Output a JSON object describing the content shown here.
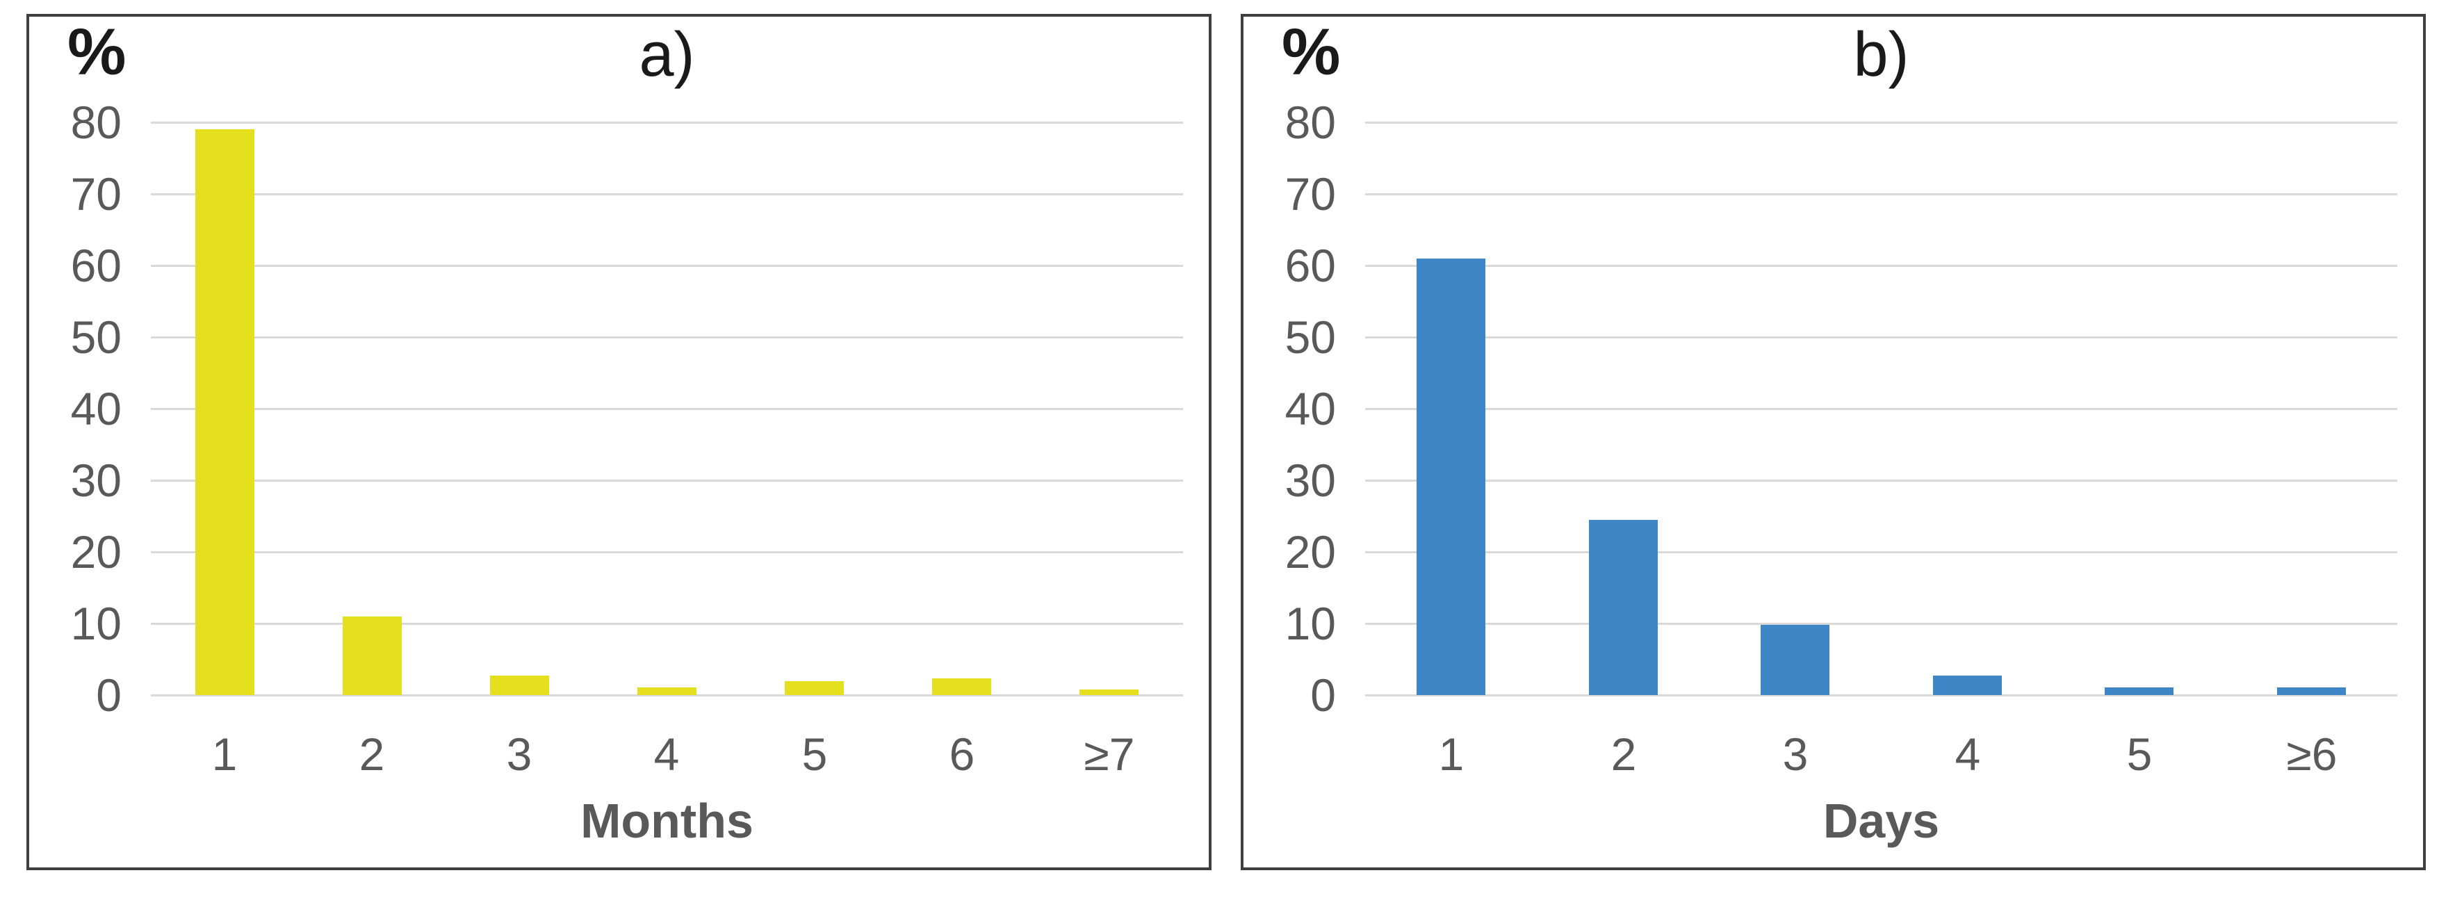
{
  "colors": {
    "frame": "#3f3f3f",
    "gridline": "#d9d9d9",
    "tick_text": "#595959",
    "axis_label_text": "#595959",
    "title_text": "#1a1a1a",
    "background": "#ffffff",
    "bar_yellow": "#e4e01e",
    "bar_blue": "#3d87c6"
  },
  "chart_data": [
    {
      "type": "bar",
      "title": "a)",
      "ylabel": "%",
      "xlabel": "Months",
      "categories": [
        "1",
        "2",
        "3",
        "4",
        "5",
        "6",
        "≥7"
      ],
      "values": [
        79,
        11,
        2.7,
        1.1,
        1.9,
        2.3,
        0.8
      ],
      "bar_color": "#e4e01e",
      "ylim": [
        0,
        80
      ],
      "yticks": [
        0,
        10,
        20,
        30,
        40,
        50,
        60,
        70,
        80
      ],
      "grid": "horizontal",
      "legend": "none"
    },
    {
      "type": "bar",
      "title": "b)",
      "ylabel": "%",
      "xlabel": "Days",
      "categories": [
        "1",
        "2",
        "3",
        "4",
        "5",
        "≥6"
      ],
      "values": [
        61,
        24.5,
        9.8,
        2.7,
        1.1,
        1.1
      ],
      "bar_color": "#3d87c6",
      "ylim": [
        0,
        80
      ],
      "yticks": [
        0,
        10,
        20,
        30,
        40,
        50,
        60,
        70,
        80
      ],
      "grid": "horizontal",
      "legend": "none"
    }
  ]
}
